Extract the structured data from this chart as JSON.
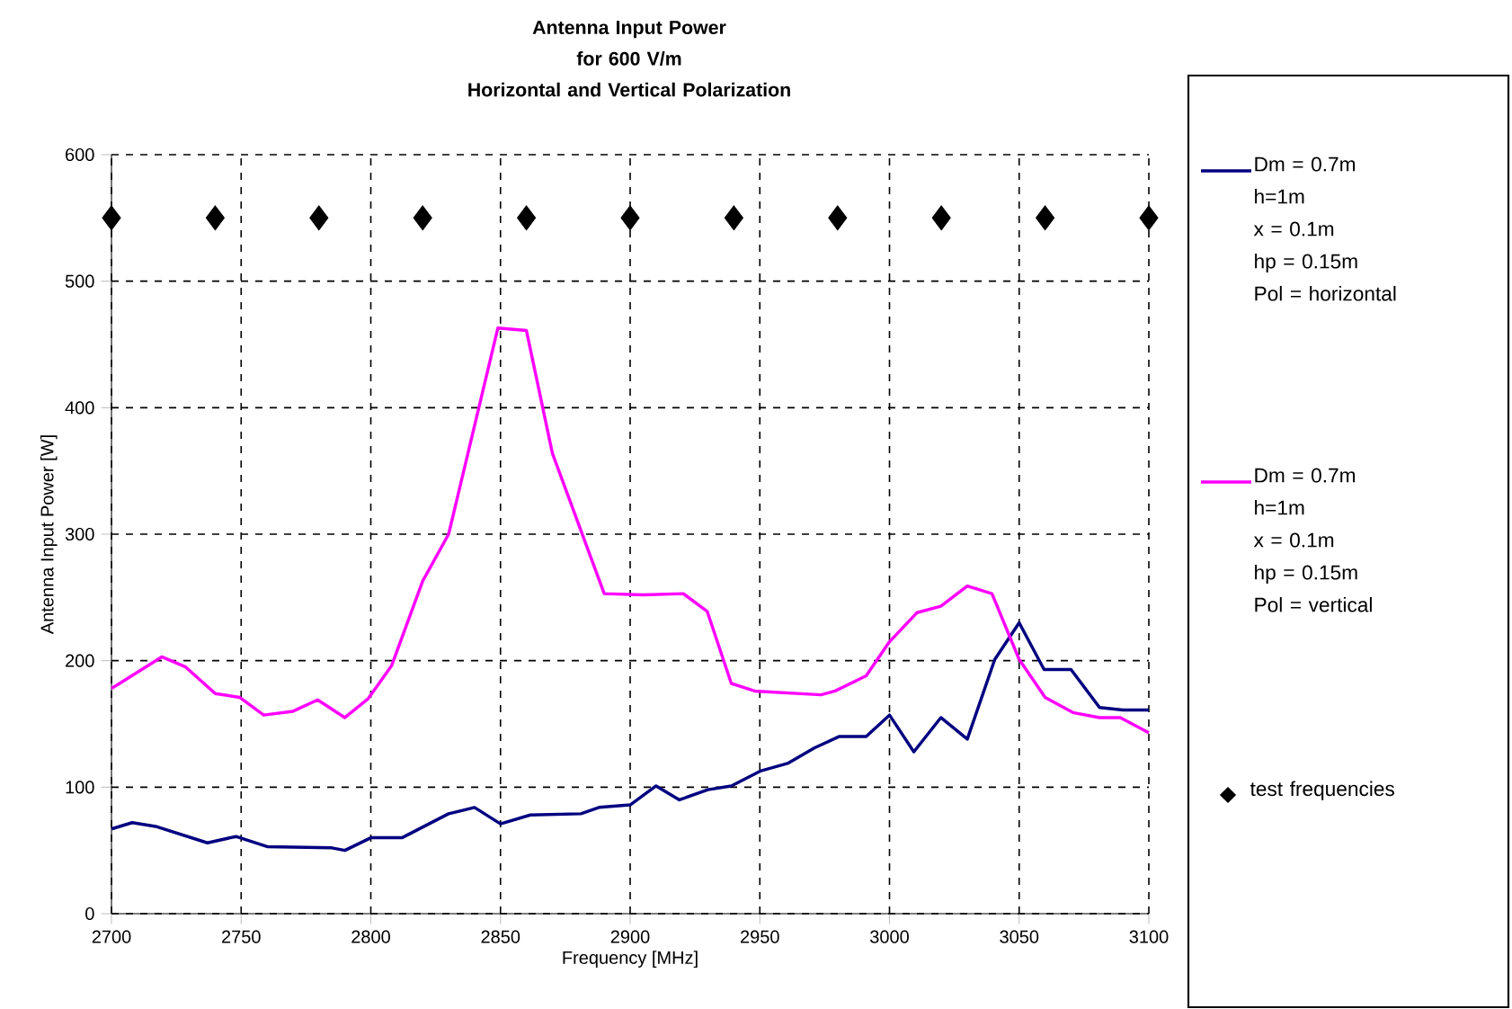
{
  "chart_data": {
    "type": "line",
    "title": "Antenna Input Power\nfor 600 V/m\nHorizontal and Vertical Polarization",
    "xlabel": "Frequency [MHz]",
    "ylabel": "Antenna Input Power [W]",
    "xlim": [
      2700,
      3100
    ],
    "xticks": [
      2700,
      2750,
      2800,
      2850,
      2900,
      2950,
      3000,
      3050,
      3100
    ],
    "ylim": [
      0,
      600
    ],
    "yticks": [
      0,
      100,
      200,
      300,
      400,
      500,
      600
    ],
    "grid": true,
    "legend": "right",
    "series": [
      {
        "name": "Dm = 0.7m\nh=1m\nx = 0.1m\nhp = 0.15m\nPol = horizontal",
        "color": "#000080",
        "type": "line",
        "marker": "none",
        "x": [
          2700,
          2708,
          2717,
          2737,
          2748,
          2760,
          2785,
          2790,
          2800,
          2812,
          2830,
          2840,
          2850,
          2861.5,
          2881,
          2888,
          2900,
          2910,
          2919,
          2930,
          2939,
          2950.5,
          2961,
          2971,
          2980.5,
          2991,
          3000,
          3009.4,
          3019.8,
          3030,
          3040.6,
          3050,
          3059.6,
          3070,
          3081,
          3090,
          3100
        ],
        "values": [
          67,
          72,
          69,
          56,
          61,
          53,
          52,
          50,
          60,
          60,
          79,
          84,
          71,
          78,
          79,
          84,
          86,
          101,
          90,
          98,
          101,
          113,
          119,
          131,
          140,
          140,
          157,
          128,
          155,
          138,
          201,
          230,
          193,
          193,
          163,
          161,
          161
        ]
      },
      {
        "name": "Dm = 0.7m\nh=1m\nx = 0.1m\nhp = 0.15m\nPol = vertical",
        "color": "#ff00ff",
        "type": "line",
        "marker": "none",
        "x": [
          2700,
          2719.4,
          2728.6,
          2740,
          2749.4,
          2758.7,
          2770,
          2779.5,
          2790,
          2799,
          2808,
          2820,
          2830,
          2849,
          2860,
          2870,
          2890,
          2905,
          2920.5,
          2929.7,
          2939,
          2948,
          2973.6,
          2979,
          2991,
          3000,
          3010.6,
          3019.8,
          3030,
          3039.5,
          3050,
          3060,
          3070.7,
          3081,
          3089,
          3100
        ],
        "values": [
          178,
          203,
          195,
          174,
          171,
          157,
          160,
          169,
          155,
          170,
          196,
          263,
          300,
          463,
          461,
          364,
          253,
          252,
          253,
          239,
          182,
          176,
          173,
          176,
          188,
          215,
          238,
          243,
          259,
          253,
          201,
          171,
          159,
          155,
          155,
          143
        ]
      },
      {
        "name": "test frequencies",
        "color": "#000000",
        "type": "scatter",
        "marker": "diamond",
        "x": [
          2700,
          2740,
          2780,
          2820,
          2860,
          2900,
          2940,
          2980,
          3020,
          3060,
          3100
        ],
        "values": [
          550,
          550,
          550,
          550,
          550,
          550,
          550,
          550,
          550,
          550,
          550
        ]
      }
    ]
  }
}
